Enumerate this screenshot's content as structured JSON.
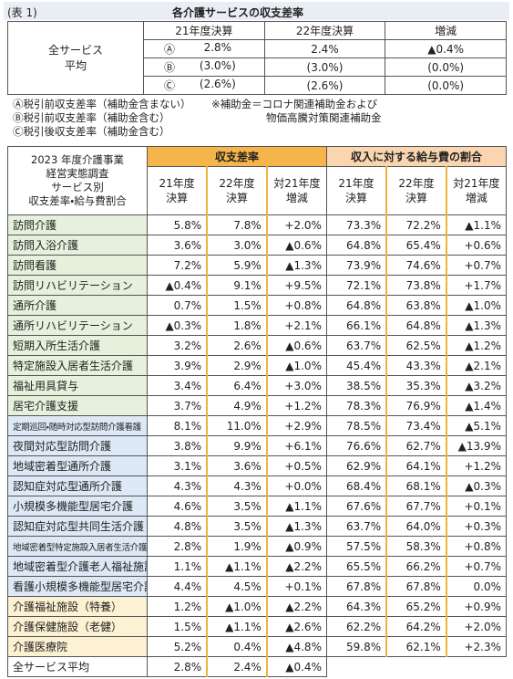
{
  "header": {
    "label": "(表 1)",
    "title": "各介護サービスの収支差率"
  },
  "summary": {
    "label_lines": [
      "全サービス",
      "平均"
    ],
    "columns": [
      "21年度決算",
      "22年度決算",
      "増減"
    ],
    "rows": [
      {
        "marker": "Ⓐ",
        "values": [
          "2.8%",
          "2.4%",
          "▲0.4%"
        ]
      },
      {
        "marker": "Ⓑ",
        "values": [
          "(3.0%)",
          "(3.0%)",
          "(0.0%)"
        ]
      },
      {
        "marker": "Ⓒ",
        "values": [
          "(2.6%)",
          "(2.6%)",
          "(0.0%)"
        ]
      }
    ]
  },
  "notes": {
    "left": [
      "Ⓐ税引前収支差率（補助金含まない）",
      "Ⓑ税引前収支差率（補助金含む）",
      "Ⓒ税引後収支差率（補助金含む）"
    ],
    "right": [
      "※補助金＝コロナ関連補助金および",
      "物価高騰対策関連補助金"
    ]
  },
  "table": {
    "corner_lines": [
      "2023 年度介護事業",
      "経営実態調査",
      "サービス別",
      "収支差率・給与費割合"
    ],
    "groups": [
      "収支差率",
      "収入に対する給与費の割合"
    ],
    "columns": [
      [
        "21年度",
        "決算"
      ],
      [
        "22年度",
        "決算"
      ],
      [
        "対21年度",
        "増減"
      ],
      [
        "21年度",
        "決算"
      ],
      [
        "22年度",
        "決算"
      ],
      [
        "対21年度",
        "増減"
      ]
    ],
    "rows": [
      {
        "name": "訪問介護",
        "values": [
          "5.8%",
          "7.8%",
          "+2.0%",
          "73.3%",
          "72.2%",
          "▲1.1%"
        ]
      },
      {
        "name": "訪問入浴介護",
        "values": [
          "3.6%",
          "3.0%",
          "▲0.6%",
          "64.8%",
          "65.4%",
          "+0.6%"
        ]
      },
      {
        "name": "訪問看護",
        "values": [
          "7.2%",
          "5.9%",
          "▲1.3%",
          "73.9%",
          "74.6%",
          "+0.7%"
        ]
      },
      {
        "name": "訪問リハビリテーション",
        "values": [
          "▲0.4%",
          "9.1%",
          "+9.5%",
          "72.1%",
          "73.8%",
          "+1.7%"
        ]
      },
      {
        "name": "通所介護",
        "values": [
          "0.7%",
          "1.5%",
          "+0.8%",
          "64.8%",
          "63.8%",
          "▲1.0%"
        ]
      },
      {
        "name": "通所リハビリテーション",
        "values": [
          "▲0.3%",
          "1.8%",
          "+2.1%",
          "66.1%",
          "64.8%",
          "▲1.3%"
        ]
      },
      {
        "name": "短期入所生活介護",
        "values": [
          "3.2%",
          "2.6%",
          "▲0.6%",
          "63.7%",
          "62.5%",
          "▲1.2%"
        ]
      },
      {
        "name": "特定施設入居者生活介護",
        "values": [
          "3.9%",
          "2.9%",
          "▲1.0%",
          "45.4%",
          "43.3%",
          "▲2.1%"
        ]
      },
      {
        "name": "福祉用具貸与",
        "values": [
          "3.4%",
          "6.4%",
          "+3.0%",
          "38.5%",
          "35.3%",
          "▲3.2%"
        ]
      },
      {
        "name": "居宅介護支援",
        "values": [
          "3.7%",
          "4.9%",
          "+1.2%",
          "78.3%",
          "76.9%",
          "▲1.4%"
        ]
      },
      {
        "name": "定期巡回・随時対応型訪問介護看護",
        "values": [
          "8.1%",
          "11.0%",
          "+2.9%",
          "78.5%",
          "73.4%",
          "▲5.1%"
        ]
      },
      {
        "name": "夜間対応型訪問介護",
        "values": [
          "3.8%",
          "9.9%",
          "+6.1%",
          "76.6%",
          "62.7%",
          "▲13.9%"
        ]
      },
      {
        "name": "地域密着型通所介護",
        "values": [
          "3.1%",
          "3.6%",
          "+0.5%",
          "62.9%",
          "64.1%",
          "+1.2%"
        ]
      },
      {
        "name": "認知症対応型通所介護",
        "values": [
          "4.3%",
          "4.3%",
          "+0.0%",
          "68.4%",
          "68.1%",
          "▲0.3%"
        ]
      },
      {
        "name": "小規模多機能型居宅介護",
        "values": [
          "4.6%",
          "3.5%",
          "▲1.1%",
          "67.6%",
          "67.7%",
          "+0.1%"
        ]
      },
      {
        "name": "認知症対応型共同生活介護",
        "values": [
          "4.8%",
          "3.5%",
          "▲1.3%",
          "63.7%",
          "64.0%",
          "+0.3%"
        ]
      },
      {
        "name": "地域密着型特定施設入居者生活介護",
        "values": [
          "2.8%",
          "1.9%",
          "▲0.9%",
          "57.5%",
          "58.3%",
          "+0.8%"
        ]
      },
      {
        "name": "地域密着型介護老人福祉施設",
        "values": [
          "1.1%",
          "▲1.1%",
          "▲2.2%",
          "65.5%",
          "66.2%",
          "+0.7%"
        ]
      },
      {
        "name": "看護小規模多機能型居宅介護",
        "values": [
          "4.4%",
          "4.5%",
          "+0.1%",
          "67.8%",
          "67.8%",
          "0.0%"
        ]
      },
      {
        "name": "介護福祉施設（特養）",
        "values": [
          "1.2%",
          "▲1.0%",
          "▲2.2%",
          "64.3%",
          "65.2%",
          "+0.9%"
        ]
      },
      {
        "name": "介護保健施設（老健）",
        "values": [
          "1.5%",
          "▲1.1%",
          "▲2.6%",
          "62.2%",
          "64.2%",
          "+2.0%"
        ]
      },
      {
        "name": "介護医療院",
        "values": [
          "5.2%",
          "0.4%",
          "▲4.8%",
          "59.8%",
          "62.1%",
          "+2.3%"
        ]
      },
      {
        "name": "全サービス平均",
        "values": [
          "2.8%",
          "2.4%",
          "▲0.4%"
        ]
      }
    ]
  }
}
